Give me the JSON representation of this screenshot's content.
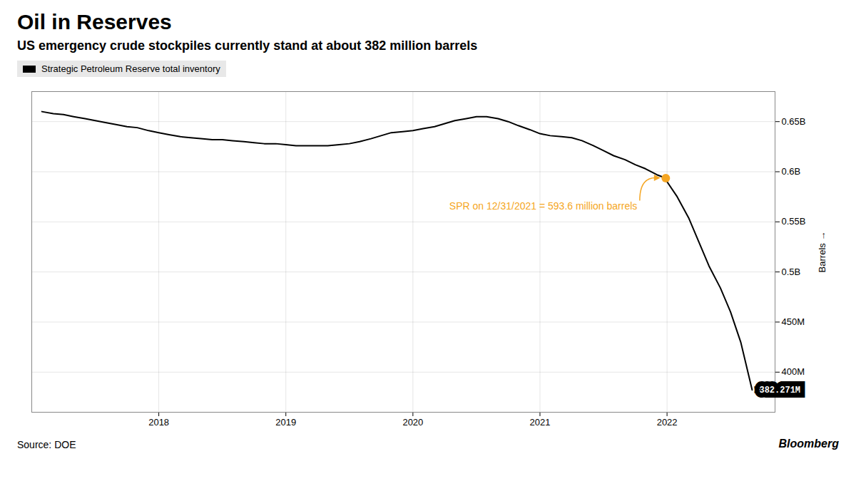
{
  "chart_data": {
    "type": "line",
    "title": "Oil in Reserves",
    "subtitle": "US emergency crude stockpiles currently stand at about 382 million barrels",
    "ylabel": "Barrels",
    "source": "Source: DOE",
    "credit": "Bloomberg",
    "legend": "upper left",
    "grid": true,
    "x": [
      2017.08,
      2017.17,
      2017.25,
      2017.33,
      2017.42,
      2017.5,
      2017.58,
      2017.67,
      2017.75,
      2017.83,
      2017.92,
      2018.0,
      2018.08,
      2018.17,
      2018.25,
      2018.33,
      2018.42,
      2018.5,
      2018.58,
      2018.67,
      2018.75,
      2018.83,
      2018.92,
      2019.0,
      2019.08,
      2019.17,
      2019.25,
      2019.33,
      2019.42,
      2019.5,
      2019.58,
      2019.67,
      2019.75,
      2019.83,
      2019.92,
      2020.0,
      2020.08,
      2020.17,
      2020.25,
      2020.33,
      2020.42,
      2020.5,
      2020.58,
      2020.67,
      2020.75,
      2020.83,
      2020.92,
      2021.0,
      2021.08,
      2021.17,
      2021.25,
      2021.33,
      2021.42,
      2021.5,
      2021.58,
      2021.67,
      2021.75,
      2021.83,
      2021.92,
      2021.99,
      2022.0,
      2022.08,
      2022.17,
      2022.25,
      2022.33,
      2022.42,
      2022.5,
      2022.58,
      2022.67
    ],
    "series": [
      {
        "name": "Strategic Petroleum Reserve total inventory",
        "color": "#000000",
        "values": [
          660000000,
          658000000,
          657000000,
          655000000,
          653000000,
          651000000,
          649000000,
          647000000,
          645000000,
          644000000,
          641000000,
          639000000,
          637000000,
          635000000,
          634000000,
          633000000,
          632000000,
          632000000,
          631000000,
          630000000,
          629000000,
          628000000,
          628000000,
          627000000,
          626000000,
          626000000,
          626000000,
          626000000,
          627000000,
          628000000,
          630000000,
          633000000,
          636000000,
          639000000,
          640000000,
          641000000,
          643000000,
          645000000,
          648000000,
          651000000,
          653000000,
          655000000,
          655000000,
          653000000,
          650000000,
          646000000,
          642000000,
          638000000,
          636000000,
          635000000,
          634000000,
          631000000,
          626000000,
          621000000,
          616000000,
          612000000,
          607000000,
          603000000,
          597000000,
          593600000,
          590000000,
          575000000,
          554000000,
          530000000,
          506000000,
          484000000,
          460000000,
          430000000,
          382271000
        ]
      }
    ],
    "xlim": [
      2017.0,
      2022.85
    ],
    "xticks": [
      2018,
      2019,
      2020,
      2021,
      2022
    ],
    "ylim": [
      360000000,
      680000000
    ],
    "yticks": [
      {
        "value": 400000000,
        "label": "400M"
      },
      {
        "value": 450000000,
        "label": "450M"
      },
      {
        "value": 500000000,
        "label": "0.5B"
      },
      {
        "value": 550000000,
        "label": "0.55B"
      },
      {
        "value": 600000000,
        "label": "0.6B"
      },
      {
        "value": 650000000,
        "label": "0.65B"
      }
    ],
    "annotations": [
      {
        "text": "382.271M",
        "x": 2022.67,
        "y": 382271000
      },
      {
        "text": "SPR on 12/31/2021 = 593.6 million barrels",
        "x": 2021.99,
        "y": 593600000,
        "color": "#f5a623",
        "marker": "circle"
      }
    ]
  }
}
